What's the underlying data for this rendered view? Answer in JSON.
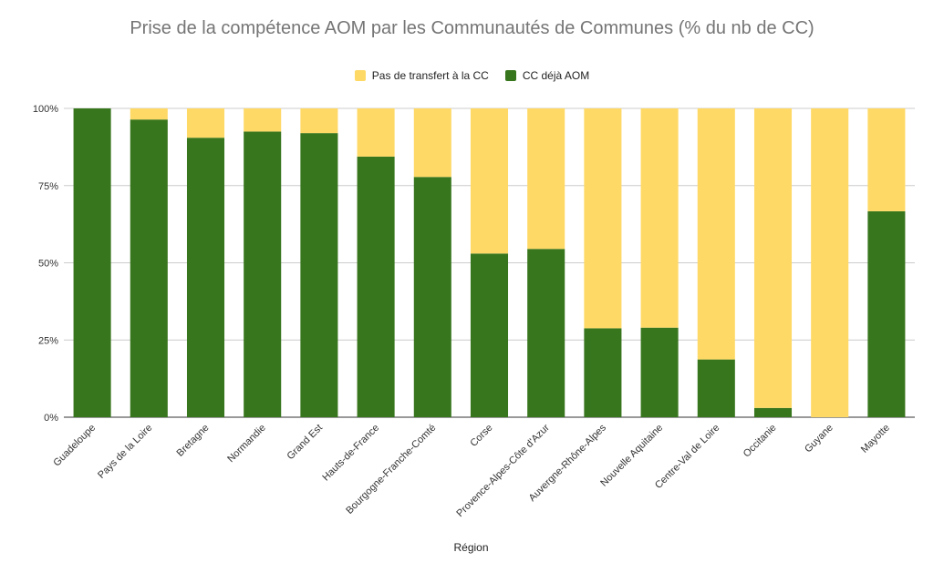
{
  "chart_data": {
    "type": "bar",
    "stacked": true,
    "title": "Prise de la compétence AOM par les Communautés de Communes (% du nb de CC)",
    "xlabel": "Région",
    "ylabel": "",
    "ylim": [
      0,
      100
    ],
    "yticks": [
      "0%",
      "25%",
      "50%",
      "75%",
      "100%"
    ],
    "grid": true,
    "legend_position": "top",
    "categories": [
      "Guadeloupe",
      "Pays de la Loire",
      "Bretagne",
      "Normandie",
      "Grand Est",
      "Hauts-de-France",
      "Bourgogne-Franche-Comté",
      "Corse",
      "Provence-Alpes-Côte d'Azur",
      "Auvergne-Rhône-Alpes",
      "Nouvelle Aquitaine",
      "Centre-Val de Loire",
      "Occitanie",
      "Guyane",
      "Mayotte"
    ],
    "series": [
      {
        "name": "CC déjà AOM",
        "color": "#38761d",
        "values": [
          100,
          96.4,
          90.5,
          92.5,
          92,
          84.4,
          77.8,
          53,
          54.5,
          28.8,
          29,
          18.7,
          3,
          0,
          66.7
        ]
      },
      {
        "name": "Pas de transfert à la CC",
        "color": "#ffd966",
        "values": [
          0,
          3.6,
          9.5,
          7.5,
          8,
          15.6,
          22.2,
          47,
          45.5,
          71.2,
          71,
          81.3,
          97,
          100,
          33.3
        ]
      }
    ],
    "legend_order": [
      "Pas de transfert à la CC",
      "CC déjà AOM"
    ]
  }
}
